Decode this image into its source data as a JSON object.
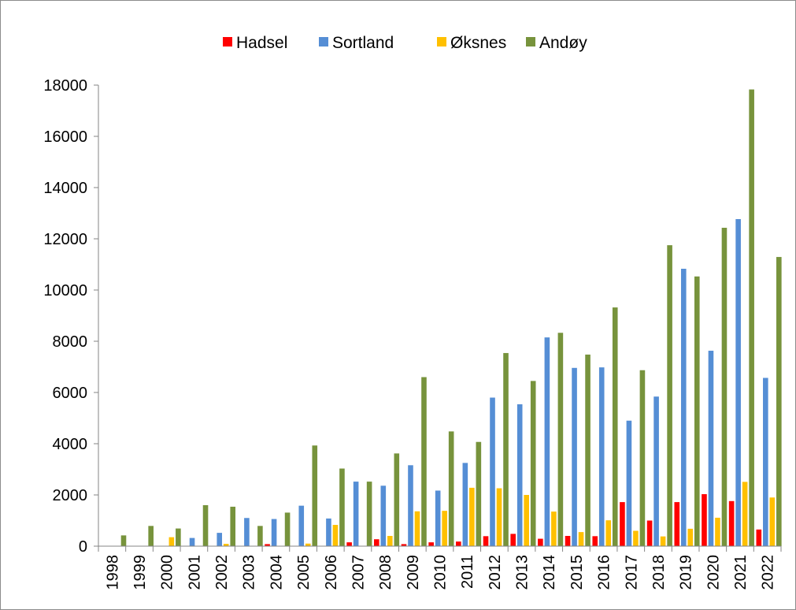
{
  "chart_data": {
    "type": "bar",
    "title": "",
    "xlabel": "",
    "ylabel": "",
    "ylim": [
      0,
      18000
    ],
    "yticks": [
      0,
      2000,
      4000,
      6000,
      8000,
      10000,
      12000,
      14000,
      16000,
      18000
    ],
    "grid": false,
    "legend": "top",
    "categories": [
      "1998",
      "1999",
      "2000",
      "2001",
      "2002",
      "2003",
      "2004",
      "2005",
      "2006",
      "2007",
      "2008",
      "2009",
      "2010",
      "2011",
      "2012",
      "2013",
      "2014",
      "2015",
      "2016",
      "2017",
      "2018",
      "2019",
      "2020",
      "2021",
      "2022"
    ],
    "series": [
      {
        "name": "Hadsel",
        "color": "#ff0000",
        "values": [
          0,
          0,
          0,
          0,
          0,
          0,
          80,
          0,
          0,
          150,
          270,
          80,
          150,
          180,
          390,
          480,
          290,
          400,
          390,
          1720,
          1000,
          1720,
          2030,
          1760,
          650
        ]
      },
      {
        "name": "Sortland",
        "color": "#558ed5",
        "values": [
          0,
          0,
          0,
          320,
          520,
          1100,
          1060,
          1580,
          1080,
          2520,
          2360,
          3160,
          2170,
          3250,
          5800,
          5540,
          8150,
          6960,
          6980,
          4900,
          5840,
          10830,
          7630,
          12770,
          6570
        ]
      },
      {
        "name": "Øksnes",
        "color": "#ffc000",
        "values": [
          0,
          0,
          350,
          0,
          90,
          0,
          0,
          100,
          830,
          0,
          400,
          1360,
          1380,
          2280,
          2260,
          2000,
          1350,
          550,
          1010,
          600,
          380,
          680,
          1110,
          2510,
          1900
        ]
      },
      {
        "name": "Andøy",
        "color": "#77933c",
        "values": [
          420,
          790,
          690,
          1600,
          1540,
          790,
          1310,
          3930,
          3030,
          2520,
          3620,
          6600,
          4480,
          4070,
          7540,
          6450,
          8330,
          7480,
          9320,
          6870,
          11750,
          10530,
          12430,
          17830,
          11290
        ]
      }
    ]
  }
}
